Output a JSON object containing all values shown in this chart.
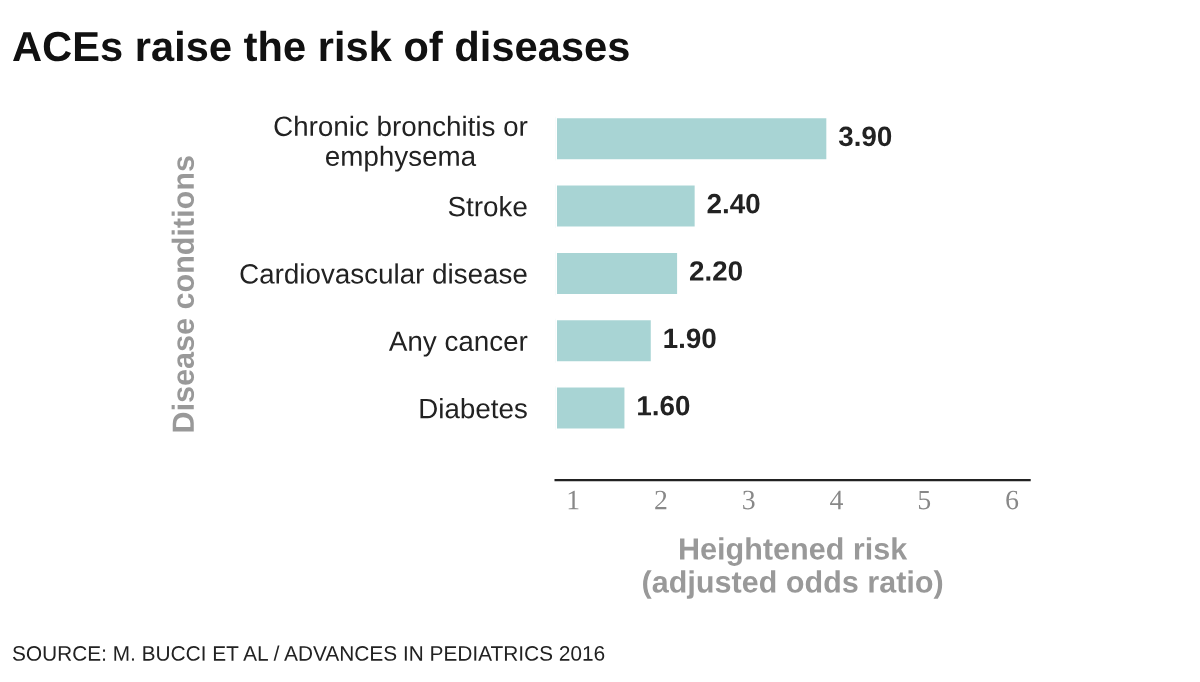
{
  "chart_data": {
    "type": "bar",
    "orientation": "horizontal",
    "title": "ACEs raise the risk of diseases",
    "categories": [
      "Chronic bronchitis or\nemphysema",
      "Stroke",
      "Cardiovascular disease",
      "Any cancer",
      "Diabetes"
    ],
    "values": [
      3.9,
      2.4,
      2.2,
      1.9,
      1.6
    ],
    "value_labels": [
      "3.90",
      "2.40",
      "2.20",
      "1.90",
      "1.60"
    ],
    "color": "#a8d4d4",
    "xlim": [
      0.8,
      6.2
    ],
    "xticks": [
      1,
      2,
      3,
      4,
      5,
      6
    ],
    "xlabel": "Heightened risk\n(adjusted odds ratio)",
    "ylabel": "Disease conditions",
    "grid": false,
    "legend": false,
    "annotations": [
      "SOURCE: M. BUCCI ET AL / ADVANCES IN PEDIATRICS 2016"
    ]
  }
}
